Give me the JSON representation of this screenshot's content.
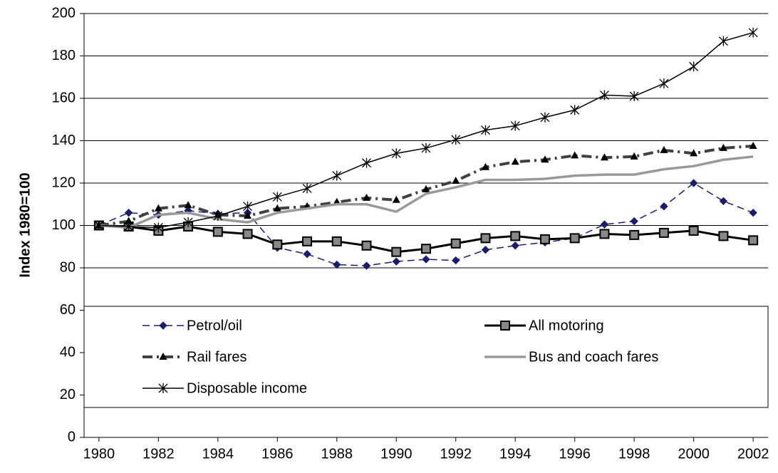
{
  "chart_data": {
    "type": "line",
    "y_label": "Index 1980=100",
    "x": [
      1980,
      1981,
      1982,
      1983,
      1984,
      1985,
      1986,
      1987,
      1988,
      1989,
      1990,
      1991,
      1992,
      1993,
      1994,
      1995,
      1996,
      1997,
      1998,
      1999,
      2000,
      2001,
      2002
    ],
    "xlim": [
      1979.5,
      2002.5
    ],
    "xticks": [
      1980,
      1982,
      1984,
      1986,
      1988,
      1990,
      1992,
      1994,
      1996,
      1998,
      2000,
      2002
    ],
    "ylim": [
      0,
      200
    ],
    "yticks": [
      0,
      20,
      40,
      60,
      80,
      100,
      120,
      140,
      160,
      180,
      200
    ],
    "grid": true,
    "legend": "bottom",
    "series": [
      {
        "name": "Petrol/oil",
        "color": "#1c1c6e",
        "marker": "diamond",
        "dash": "dashed",
        "values": [
          100,
          106,
          105,
          107,
          105.5,
          106,
          89.5,
          86.5,
          81.5,
          81,
          83,
          84,
          83.5,
          88.5,
          90.5,
          92,
          94,
          100.5,
          102,
          109,
          120,
          111.5,
          106
        ]
      },
      {
        "name": "All motoring",
        "color": "#000000",
        "marker": "square",
        "dash": "solid",
        "values": [
          100,
          99.5,
          97.5,
          99.5,
          97,
          96,
          91,
          92.5,
          92.5,
          90.5,
          87.5,
          89,
          91.5,
          94,
          95,
          93.5,
          94,
          96,
          95.5,
          96.5,
          97.5,
          95,
          93
        ]
      },
      {
        "name": "Rail fares",
        "color": "#404040",
        "marker": "triangle",
        "dash": "dashdot",
        "values": [
          100,
          102,
          108,
          109.5,
          105,
          104.5,
          108,
          109,
          111,
          113,
          112,
          117,
          121,
          127.5,
          130,
          131,
          133,
          132,
          132.5,
          135.5,
          134,
          136.5,
          137.5
        ]
      },
      {
        "name": "Bus and coach fares",
        "color": "#999999",
        "marker": "none",
        "dash": "solid",
        "values": [
          100,
          99,
          105,
          106,
          103,
          101.5,
          106,
          108,
          110,
          110,
          106.5,
          115,
          118,
          121.5,
          121.5,
          122,
          123.5,
          124,
          124,
          126.5,
          128,
          131,
          132.5
        ]
      },
      {
        "name": "Disposable income",
        "color": "#000000",
        "marker": "star",
        "dash": "solid",
        "values": [
          100,
          99.5,
          99,
          101.5,
          104.5,
          109,
          113.5,
          117.5,
          123.5,
          129.5,
          134,
          136.5,
          140.5,
          145,
          147,
          151,
          154.5,
          161.5,
          161,
          167,
          175,
          187,
          191
        ]
      }
    ]
  }
}
